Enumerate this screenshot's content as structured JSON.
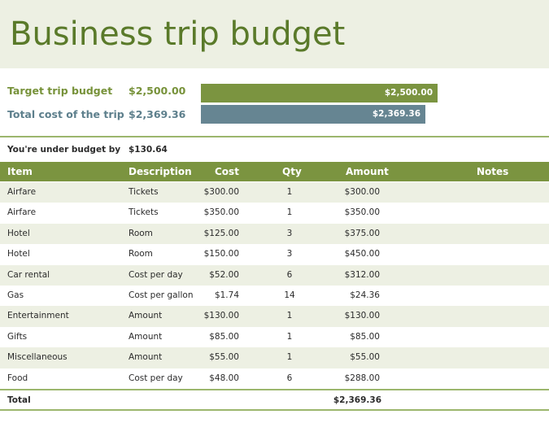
{
  "title": "Business trip budget",
  "summary": {
    "target_label": "Target trip budget",
    "target_value": "$2,500.00",
    "target_bar_label": "$2,500.00",
    "total_label": "Total cost of the trip",
    "total_value": "$2,369.36",
    "total_bar_label": "$2,369.36",
    "under_label": "You're under budget by",
    "under_value": "$130.64"
  },
  "colors": {
    "accent_green": "#7b9440",
    "accent_blue": "#668592",
    "band": "#edf0e3"
  },
  "table": {
    "headers": {
      "item": "Item",
      "description": "Description",
      "cost": "Cost",
      "qty": "Qty",
      "amount": "Amount",
      "notes": "Notes"
    },
    "rows": [
      {
        "item": "Airfare",
        "description": "Tickets",
        "cost": "$300.00",
        "qty": "1",
        "amount": "$300.00",
        "notes": ""
      },
      {
        "item": "Airfare",
        "description": "Tickets",
        "cost": "$350.00",
        "qty": "1",
        "amount": "$350.00",
        "notes": ""
      },
      {
        "item": "Hotel",
        "description": "Room",
        "cost": "$125.00",
        "qty": "3",
        "amount": "$375.00",
        "notes": ""
      },
      {
        "item": "Hotel",
        "description": "Room",
        "cost": "$150.00",
        "qty": "3",
        "amount": "$450.00",
        "notes": ""
      },
      {
        "item": "Car rental",
        "description": "Cost per day",
        "cost": "$52.00",
        "qty": "6",
        "amount": "$312.00",
        "notes": ""
      },
      {
        "item": "Gas",
        "description": "Cost per gallon",
        "cost": "$1.74",
        "qty": "14",
        "amount": "$24.36",
        "notes": ""
      },
      {
        "item": "Entertainment",
        "description": "Amount",
        "cost": "$130.00",
        "qty": "1",
        "amount": "$130.00",
        "notes": ""
      },
      {
        "item": "Gifts",
        "description": "Amount",
        "cost": "$85.00",
        "qty": "1",
        "amount": "$85.00",
        "notes": ""
      },
      {
        "item": "Miscellaneous",
        "description": "Amount",
        "cost": "$55.00",
        "qty": "1",
        "amount": "$55.00",
        "notes": ""
      },
      {
        "item": "Food",
        "description": "Cost per day",
        "cost": "$48.00",
        "qty": "6",
        "amount": "$288.00",
        "notes": ""
      }
    ],
    "total_label": "Total",
    "total_value": "$2,369.36"
  }
}
